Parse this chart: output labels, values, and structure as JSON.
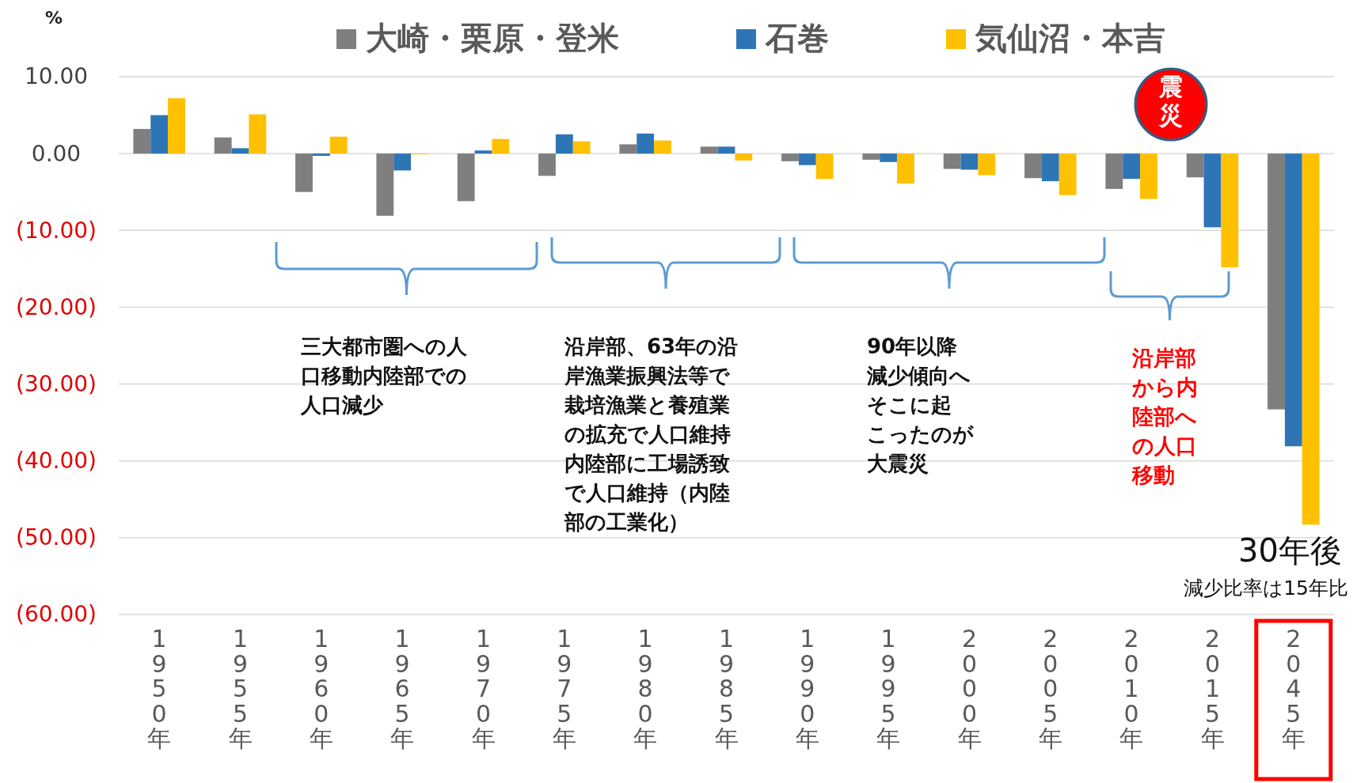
{
  "chart_data": {
    "type": "bar",
    "ylabel": "%",
    "categories": [
      "1950年",
      "1955年",
      "1960年",
      "1965年",
      "1970年",
      "1975年",
      "1980年",
      "1985年",
      "1990年",
      "1995年",
      "2000年",
      "2005年",
      "2010年",
      "2015年",
      "2045年"
    ],
    "series": [
      {
        "name": "大崎・栗原・登米",
        "color": "#7f7f7f",
        "values": [
          3.2,
          2.1,
          -5.0,
          -8.1,
          -6.2,
          -2.9,
          1.2,
          0.9,
          -1.0,
          -0.8,
          -2.0,
          -3.2,
          -4.6,
          -3.1,
          -33.3
        ]
      },
      {
        "name": "石巻",
        "color": "#2e75b6",
        "values": [
          5.0,
          0.7,
          -0.3,
          -2.2,
          0.4,
          2.5,
          2.6,
          0.9,
          -1.5,
          -1.1,
          -2.1,
          -3.6,
          -3.3,
          -9.6,
          -38.1
        ]
      },
      {
        "name": "気仙沼・本吉",
        "color": "#ffc000",
        "values": [
          7.2,
          5.1,
          2.2,
          -0.1,
          1.9,
          1.6,
          1.7,
          -0.9,
          -3.3,
          -3.9,
          -2.8,
          -5.4,
          -5.9,
          -14.8,
          -48.3
        ]
      }
    ],
    "ylim": [
      -60,
      10
    ],
    "yticks": [
      {
        "value": 10,
        "label": "10.00"
      },
      {
        "value": 0,
        "label": "0.00"
      },
      {
        "value": -10,
        "label": "(10.00)"
      },
      {
        "value": -20,
        "label": "(20.00)"
      },
      {
        "value": -30,
        "label": "(30.00)"
      },
      {
        "value": -40,
        "label": "(40.00)"
      },
      {
        "value": -50,
        "label": "(50.00)"
      },
      {
        "value": -60,
        "label": "(60.00)"
      }
    ],
    "grid": "y",
    "legend": "top",
    "annotations": [
      "三大都市圏への人口移動内陸部での人口減少",
      "沿岸部、63年の沿岸漁業振興法等で栽培漁業と養殖業の拡充で人口維持内陸部に工場誘致で人口維持（内陸部の工業化）",
      "90年以降減少傾向へそこに起こったのが大震災",
      "沿岸部から内陸部への人口移動",
      "30年後",
      "減少比率は15年比",
      "震災"
    ]
  }
}
